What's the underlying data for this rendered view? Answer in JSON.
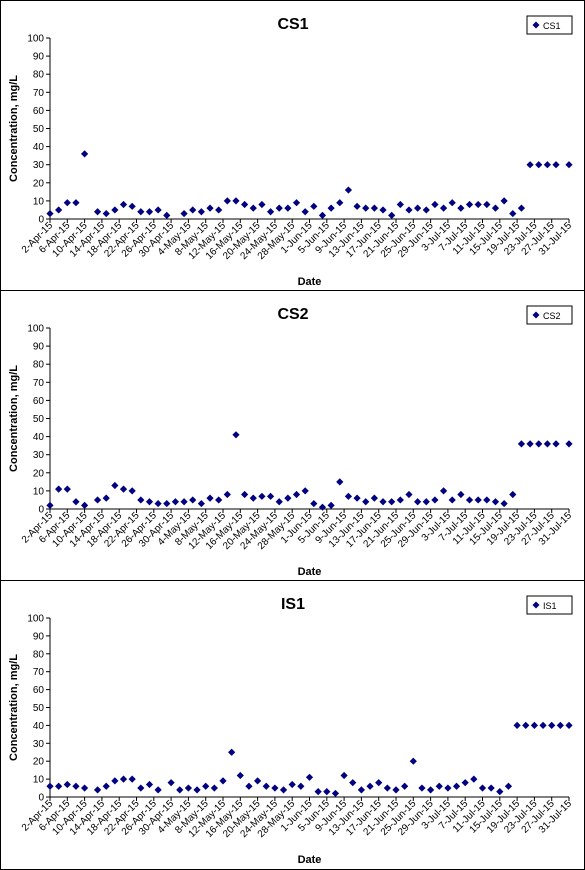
{
  "chart_data": [
    {
      "type": "scatter",
      "title": "CS1",
      "xlabel": "Date",
      "ylabel": "Concentration, mg/L",
      "ylim": [
        0,
        100
      ],
      "yticks": [
        0,
        10,
        20,
        30,
        40,
        50,
        60,
        70,
        80,
        90,
        100
      ],
      "grid": false,
      "legend_position": "top-right",
      "marker_color": "#000080",
      "xticks": [
        "2-Apr-15",
        "6-Apr-15",
        "10-Apr-15",
        "14-Apr-15",
        "18-Apr-15",
        "22-Apr-15",
        "26-Apr-15",
        "30-Apr-15",
        "4-May-15",
        "8-May-15",
        "12-May-15",
        "16-May-15",
        "20-May-15",
        "24-May-15",
        "28-May-15",
        "1-Jun-15",
        "5-Jun-15",
        "9-Jun-15",
        "13-Jun-15",
        "17-Jun-15",
        "21-Jun-15",
        "25-Jun-15",
        "29-Jun-15",
        "3-Jul-15",
        "7-Jul-15",
        "11-Jul-15",
        "15-Jul-15",
        "19-Jul-15",
        "23-Jul-15",
        "27-Jul-15",
        "31-Jul-15"
      ],
      "series": [
        {
          "name": "CS1",
          "x": [
            "2-Apr-15",
            "4-Apr-15",
            "6-Apr-15",
            "8-Apr-15",
            "10-Apr-15",
            "13-Apr-15",
            "15-Apr-15",
            "17-Apr-15",
            "19-Apr-15",
            "21-Apr-15",
            "23-Apr-15",
            "25-Apr-15",
            "27-Apr-15",
            "29-Apr-15",
            "3-May-15",
            "5-May-15",
            "7-May-15",
            "9-May-15",
            "11-May-15",
            "13-May-15",
            "15-May-15",
            "17-May-15",
            "19-May-15",
            "21-May-15",
            "23-May-15",
            "25-May-15",
            "27-May-15",
            "29-May-15",
            "31-May-15",
            "2-Jun-15",
            "4-Jun-15",
            "6-Jun-15",
            "8-Jun-15",
            "10-Jun-15",
            "12-Jun-15",
            "14-Jun-15",
            "16-Jun-15",
            "18-Jun-15",
            "20-Jun-15",
            "22-Jun-15",
            "24-Jun-15",
            "26-Jun-15",
            "28-Jun-15",
            "30-Jun-15",
            "2-Jul-15",
            "4-Jul-15",
            "6-Jul-15",
            "8-Jul-15",
            "10-Jul-15",
            "12-Jul-15",
            "14-Jul-15",
            "16-Jul-15",
            "18-Jul-15",
            "20-Jul-15",
            "22-Jul-15",
            "24-Jul-15",
            "26-Jul-15",
            "28-Jul-15",
            "31-Jul-15"
          ],
          "y": [
            3,
            5,
            9,
            9,
            36,
            4,
            3,
            5,
            8,
            7,
            4,
            4,
            5,
            2,
            3,
            5,
            4,
            6,
            5,
            10,
            10,
            8,
            6,
            8,
            4,
            6,
            6,
            9,
            4,
            7,
            2,
            6,
            9,
            16,
            7,
            6,
            6,
            5,
            2,
            8,
            5,
            6,
            5,
            8,
            6,
            9,
            6,
            8,
            8,
            8,
            6,
            10,
            3,
            6,
            30,
            30,
            30,
            30,
            30
          ]
        }
      ]
    },
    {
      "type": "scatter",
      "title": "CS2",
      "xlabel": "Date",
      "ylabel": "Concentration, mg/L",
      "ylim": [
        0,
        100
      ],
      "yticks": [
        0,
        10,
        20,
        30,
        40,
        50,
        60,
        70,
        80,
        90,
        100
      ],
      "grid": false,
      "legend_position": "top-right",
      "marker_color": "#000080",
      "xticks": [
        "2-Apr-15",
        "6-Apr-15",
        "10-Apr-15",
        "14-Apr-15",
        "18-Apr-15",
        "22-Apr-15",
        "26-Apr-15",
        "30-Apr-15",
        "4-May-15",
        "8-May-15",
        "12-May-15",
        "16-May-15",
        "20-May-15",
        "24-May-15",
        "28-May-15",
        "1-Jun-15",
        "5-Jun-15",
        "9-Jun-15",
        "13-Jun-15",
        "17-Jun-15",
        "21-Jun-15",
        "25-Jun-15",
        "29-Jun-15",
        "3-Jul-15",
        "7-Jul-15",
        "11-Jul-15",
        "15-Jul-15",
        "19-Jul-15",
        "23-Jul-15",
        "27-Jul-15",
        "31-Jul-15"
      ],
      "series": [
        {
          "name": "CS2",
          "x": [
            "2-Apr-15",
            "4-Apr-15",
            "6-Apr-15",
            "8-Apr-15",
            "10-Apr-15",
            "13-Apr-15",
            "15-Apr-15",
            "17-Apr-15",
            "19-Apr-15",
            "21-Apr-15",
            "23-Apr-15",
            "25-Apr-15",
            "27-Apr-15",
            "29-Apr-15",
            "1-May-15",
            "3-May-15",
            "5-May-15",
            "7-May-15",
            "9-May-15",
            "11-May-15",
            "13-May-15",
            "15-May-15",
            "17-May-15",
            "19-May-15",
            "21-May-15",
            "23-May-15",
            "25-May-15",
            "27-May-15",
            "29-May-15",
            "31-May-15",
            "2-Jun-15",
            "4-Jun-15",
            "6-Jun-15",
            "8-Jun-15",
            "10-Jun-15",
            "12-Jun-15",
            "14-Jun-15",
            "16-Jun-15",
            "18-Jun-15",
            "20-Jun-15",
            "22-Jun-15",
            "24-Jun-15",
            "26-Jun-15",
            "28-Jun-15",
            "30-Jun-15",
            "2-Jul-15",
            "4-Jul-15",
            "6-Jul-15",
            "8-Jul-15",
            "10-Jul-15",
            "12-Jul-15",
            "14-Jul-15",
            "16-Jul-15",
            "18-Jul-15",
            "20-Jul-15",
            "22-Jul-15",
            "24-Jul-15",
            "26-Jul-15",
            "28-Jul-15",
            "31-Jul-15"
          ],
          "y": [
            2,
            11,
            11,
            4,
            2,
            5,
            6,
            13,
            11,
            10,
            5,
            4,
            3,
            3,
            4,
            4,
            5,
            3,
            6,
            5,
            8,
            41,
            8,
            6,
            7,
            7,
            4,
            6,
            8,
            10,
            3,
            1,
            2,
            15,
            7,
            6,
            4,
            6,
            4,
            4,
            5,
            8,
            4,
            4,
            5,
            10,
            5,
            8,
            5,
            5,
            5,
            4,
            3,
            8,
            36,
            36,
            36,
            36,
            36,
            36
          ]
        }
      ]
    },
    {
      "type": "scatter",
      "title": "IS1",
      "xlabel": "Date",
      "ylabel": "Concentration, mg/L",
      "ylim": [
        0,
        100
      ],
      "yticks": [
        0,
        10,
        20,
        30,
        40,
        50,
        60,
        70,
        80,
        90,
        100
      ],
      "grid": false,
      "legend_position": "top-right",
      "marker_color": "#000080",
      "xticks": [
        "2-Apr-15",
        "6-Apr-15",
        "10-Apr-15",
        "14-Apr-15",
        "18-Apr-15",
        "22-Apr-15",
        "26-Apr-15",
        "30-Apr-15",
        "4-May-15",
        "8-May-15",
        "12-May-15",
        "16-May-15",
        "20-May-15",
        "24-May-15",
        "28-May-15",
        "1-Jun-15",
        "5-Jun-15",
        "9-Jun-15",
        "13-Jun-15",
        "17-Jun-15",
        "21-Jun-15",
        "25-Jun-15",
        "29-Jun-15",
        "3-Jul-15",
        "7-Jul-15",
        "11-Jul-15",
        "15-Jul-15",
        "19-Jul-15",
        "23-Jul-15",
        "27-Jul-15",
        "31-Jul-15"
      ],
      "series": [
        {
          "name": "IS1",
          "x": [
            "2-Apr-15",
            "4-Apr-15",
            "6-Apr-15",
            "8-Apr-15",
            "10-Apr-15",
            "13-Apr-15",
            "15-Apr-15",
            "17-Apr-15",
            "19-Apr-15",
            "21-Apr-15",
            "23-Apr-15",
            "25-Apr-15",
            "27-Apr-15",
            "30-Apr-15",
            "2-May-15",
            "4-May-15",
            "6-May-15",
            "8-May-15",
            "10-May-15",
            "12-May-15",
            "14-May-15",
            "16-May-15",
            "18-May-15",
            "20-May-15",
            "22-May-15",
            "24-May-15",
            "26-May-15",
            "28-May-15",
            "30-May-15",
            "1-Jun-15",
            "3-Jun-15",
            "5-Jun-15",
            "7-Jun-15",
            "9-Jun-15",
            "11-Jun-15",
            "13-Jun-15",
            "15-Jun-15",
            "17-Jun-15",
            "19-Jun-15",
            "21-Jun-15",
            "23-Jun-15",
            "25-Jun-15",
            "27-Jun-15",
            "29-Jun-15",
            "1-Jul-15",
            "3-Jul-15",
            "5-Jul-15",
            "7-Jul-15",
            "9-Jul-15",
            "11-Jul-15",
            "13-Jul-15",
            "15-Jul-15",
            "17-Jul-15",
            "19-Jul-15",
            "21-Jul-15",
            "23-Jul-15",
            "25-Jul-15",
            "27-Jul-15",
            "29-Jul-15",
            "31-Jul-15"
          ],
          "y": [
            6,
            6,
            7,
            6,
            5,
            4,
            6,
            9,
            10,
            10,
            5,
            7,
            4,
            8,
            4,
            5,
            4,
            6,
            5,
            9,
            25,
            12,
            6,
            9,
            6,
            5,
            4,
            7,
            6,
            11,
            3,
            3,
            2,
            12,
            8,
            4,
            6,
            8,
            5,
            4,
            6,
            20,
            5,
            4,
            6,
            5,
            6,
            8,
            10,
            5,
            5,
            3,
            6,
            40,
            40,
            40,
            40,
            40,
            40,
            40
          ]
        }
      ]
    }
  ]
}
